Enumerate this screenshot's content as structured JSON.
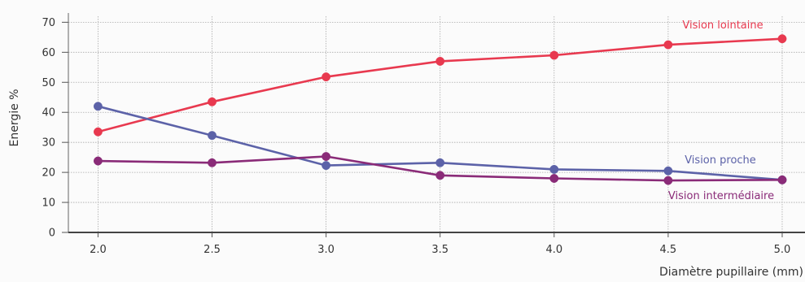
{
  "chart_data": {
    "type": "line",
    "title": "",
    "xlabel": "Diamètre pupillaire (mm)",
    "ylabel": "Energie %",
    "x": [
      2.0,
      2.5,
      3.0,
      3.5,
      4.0,
      4.5,
      5.0
    ],
    "x_tick_labels": [
      "2.0",
      "2.5",
      "3.0",
      "3.5",
      "4.0",
      "4.5",
      "5.0"
    ],
    "y_ticks": [
      0,
      10,
      20,
      30,
      40,
      50,
      60,
      70
    ],
    "xlim": [
      1.87,
      5.1
    ],
    "ylim": [
      0,
      72
    ],
    "grid": true,
    "legend": "inline labels near line ends",
    "series": [
      {
        "name": "Vision lointaine",
        "color": "#e8394f",
        "values": [
          33.5,
          43.5,
          51.8,
          57.0,
          59.0,
          62.5,
          64.5
        ]
      },
      {
        "name": "Vision proche",
        "color": "#5c62a8",
        "values": [
          42.0,
          32.3,
          22.3,
          23.2,
          21.0,
          20.5,
          17.5
        ]
      },
      {
        "name": "Vision intermédiaire",
        "color": "#8a2b78",
        "values": [
          23.8,
          23.2,
          25.3,
          19.0,
          18.0,
          17.3,
          17.5
        ]
      }
    ]
  }
}
